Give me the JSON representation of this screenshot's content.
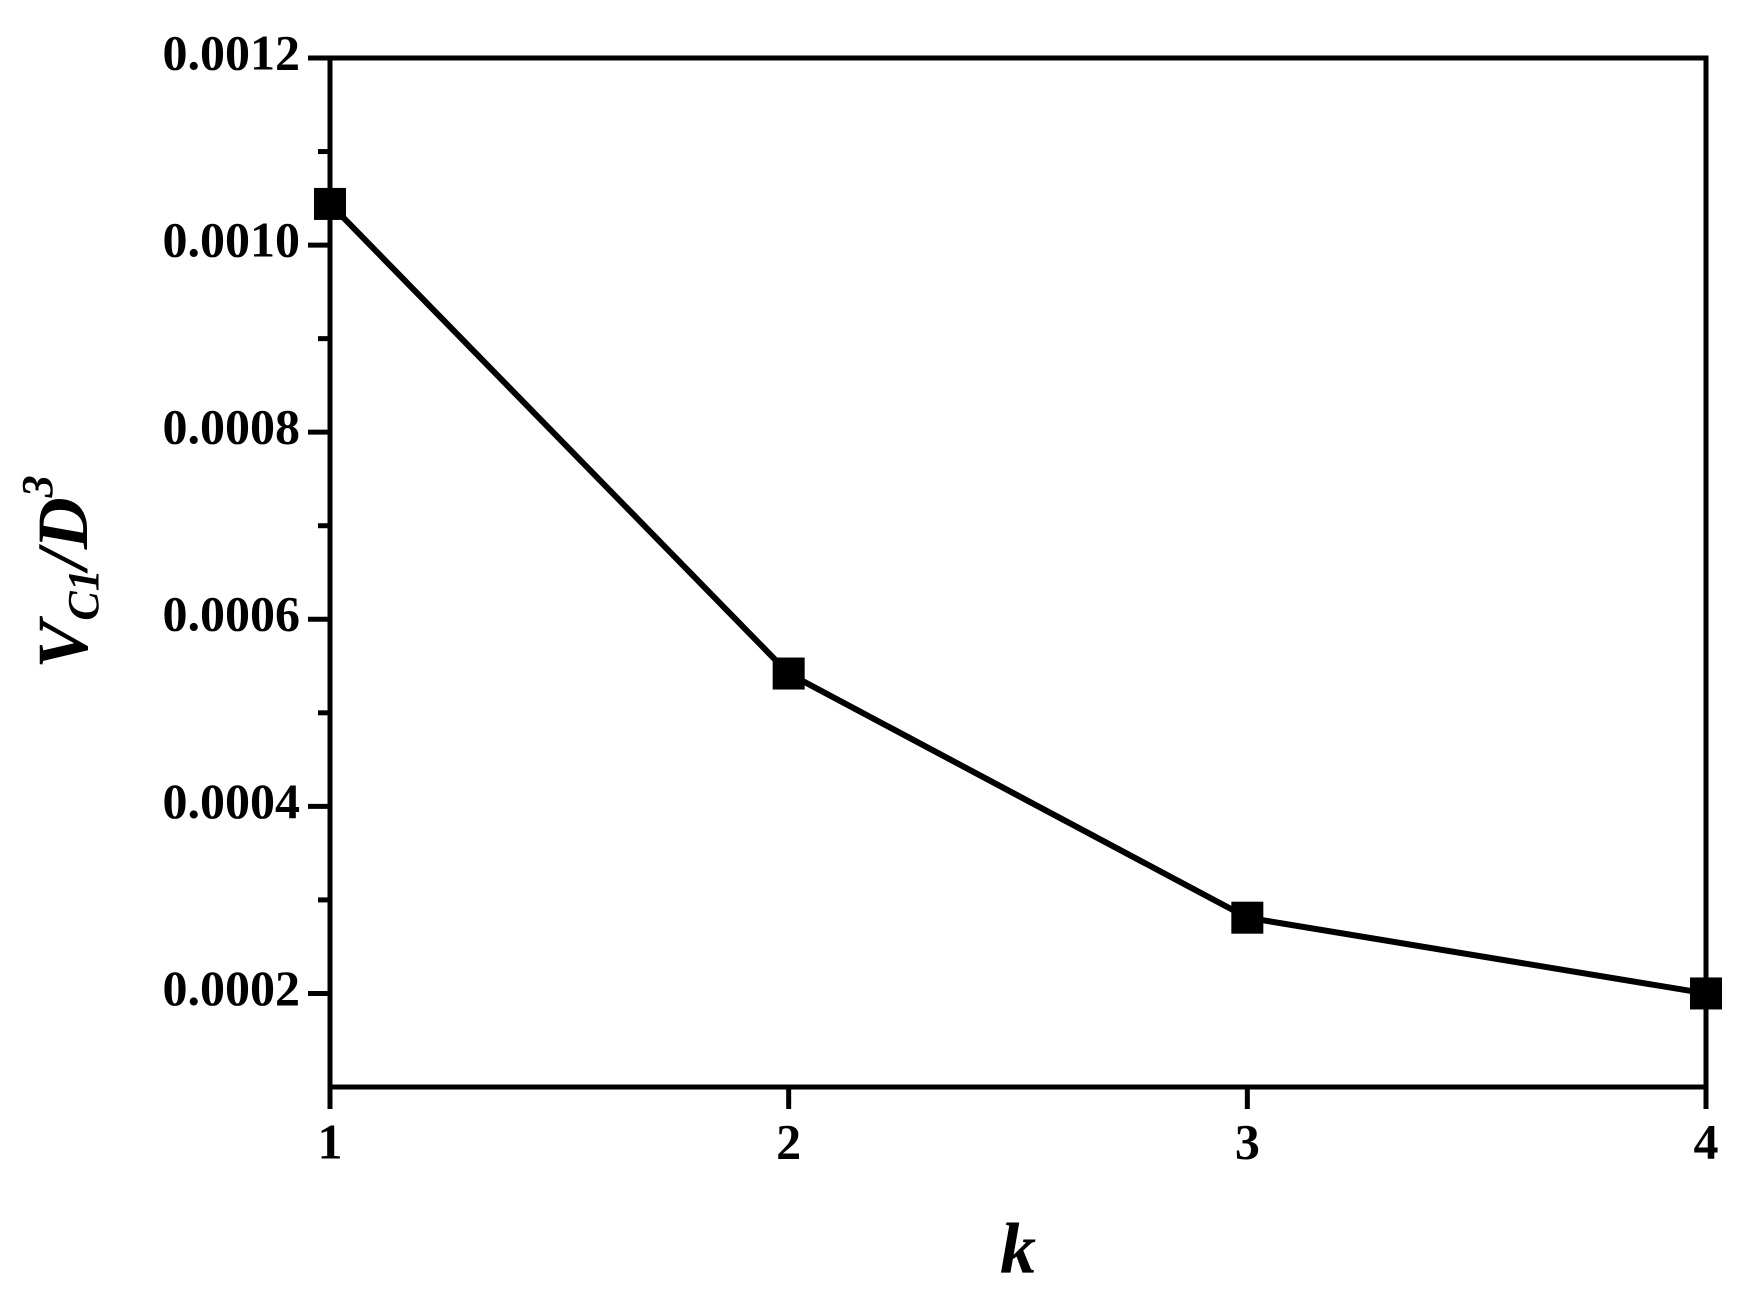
{
  "chart_data": {
    "type": "line",
    "xlabel": "k",
    "ylabel_parts": [
      "V",
      "C1",
      "/D",
      "3"
    ],
    "x": [
      1,
      2,
      3,
      4
    ],
    "series": [
      {
        "color": "#000000",
        "values": [
          0.001044,
          0.000542,
          0.000281,
          0.0002
        ]
      }
    ],
    "xlim": [
      1,
      4
    ],
    "xticks": [
      1,
      2,
      3,
      4
    ],
    "ylim": [
      0.0001,
      0.0012
    ],
    "yticks": [
      0.0002,
      0.0004,
      0.0006,
      0.0008,
      {
        "value": 0.001,
        "label": "0.0010"
      },
      0.0012
    ],
    "grid": false
  }
}
